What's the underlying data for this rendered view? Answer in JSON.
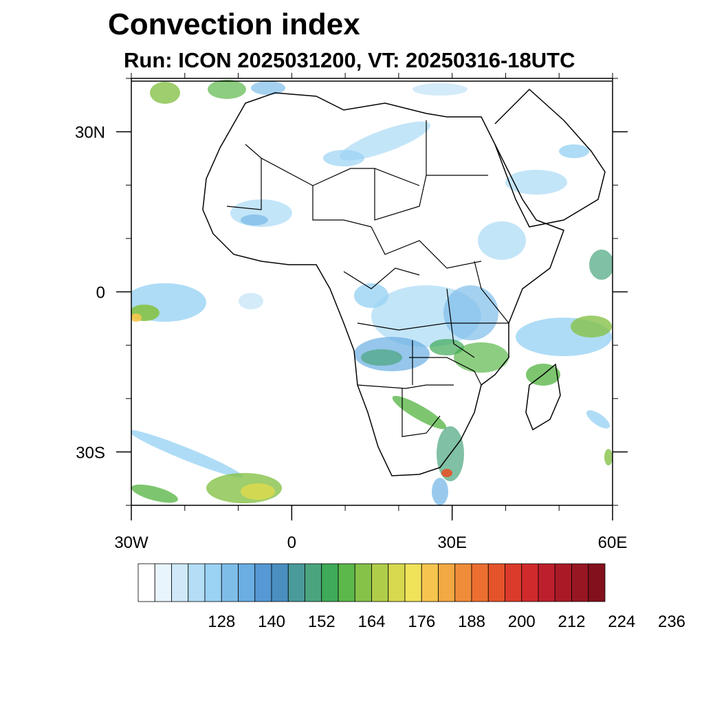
{
  "title": "Convection index",
  "subtitle": "Run: ICON 2025031200,  VT: 20250316-18UTC",
  "map": {
    "region": "Africa",
    "extent": {
      "lon": [
        -30,
        60
      ],
      "lat": [
        -40,
        40
      ]
    },
    "lat_ticks": [
      {
        "value": 30,
        "label": "30N"
      },
      {
        "value": 0,
        "label": "0"
      },
      {
        "value": -30,
        "label": "30S"
      }
    ],
    "lon_ticks": [
      {
        "value": -30,
        "label": "30W"
      },
      {
        "value": 0,
        "label": "0"
      },
      {
        "value": 30,
        "label": "30E"
      },
      {
        "value": 60,
        "label": "60E"
      }
    ],
    "minor_lon_step": 10,
    "minor_lat_step": 10
  },
  "colorbar": {
    "colors": [
      "#ffffff",
      "#e8f5fc",
      "#cfe9f8",
      "#b4def6",
      "#9ad3f4",
      "#7fbde9",
      "#6aaee2",
      "#5598d3",
      "#4a8fc0",
      "#4a9a9a",
      "#4aa57e",
      "#3faa57",
      "#5cb84b",
      "#86c248",
      "#b0cd4a",
      "#d8d94f",
      "#f0e35a",
      "#f7c54e",
      "#f2a843",
      "#ef8c39",
      "#ec6f30",
      "#e4532a",
      "#db3b2a",
      "#d02a2c",
      "#bd1f2c",
      "#aa1a26",
      "#971621",
      "#82111d"
    ],
    "labels": [
      "128",
      "140",
      "152",
      "164",
      "176",
      "188",
      "200",
      "212",
      "224",
      "236"
    ],
    "label_positions": [
      2,
      4,
      6,
      8,
      10,
      12,
      14,
      16,
      18,
      20
    ]
  }
}
